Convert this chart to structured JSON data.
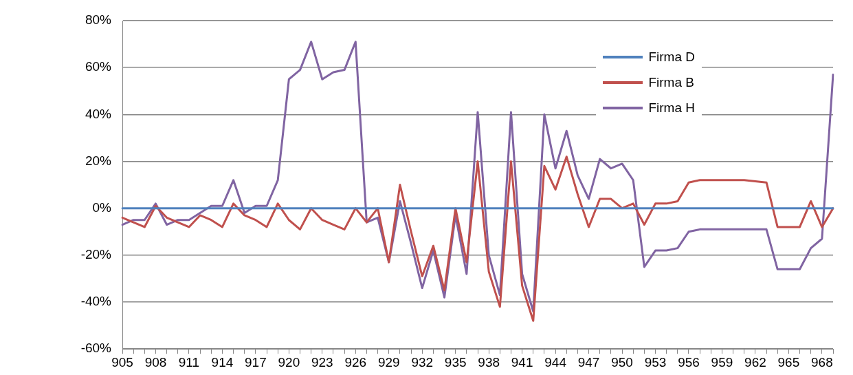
{
  "chart_data": {
    "type": "line",
    "categories": [
      "905",
      null,
      null,
      "908",
      null,
      null,
      "911",
      null,
      null,
      "914",
      null,
      null,
      "917",
      null,
      null,
      "920",
      null,
      null,
      "923",
      null,
      null,
      "926",
      null,
      null,
      "929",
      null,
      null,
      "932",
      null,
      null,
      "935",
      null,
      null,
      "938",
      null,
      null,
      "941",
      null,
      null,
      "944",
      null,
      null,
      "947",
      null,
      null,
      "950",
      null,
      null,
      "953",
      null,
      null,
      "956",
      null,
      null,
      "959",
      null,
      null,
      "962",
      null,
      null,
      "965",
      null,
      null,
      "968",
      null
    ],
    "series": [
      {
        "name": "Firma D",
        "color": "#4f81bd",
        "values": [
          0,
          0,
          0,
          0,
          0,
          0,
          0,
          0,
          0,
          0,
          0,
          0,
          0,
          0,
          0,
          0,
          0,
          0,
          0,
          0,
          0,
          0,
          0,
          0,
          0,
          0,
          0,
          0,
          0,
          0,
          0,
          0,
          0,
          0,
          0,
          0,
          0,
          0,
          0,
          0,
          0,
          0,
          0,
          0,
          0,
          0,
          0,
          0,
          0,
          0,
          0,
          0,
          0,
          0,
          0,
          0,
          0,
          0,
          0,
          0,
          0,
          0,
          0,
          0,
          0
        ]
      },
      {
        "name": "Firma B",
        "color": "#c0504d",
        "values": [
          -4,
          -6,
          -8,
          1,
          -4,
          -6,
          -8,
          -3,
          -5,
          -8,
          2,
          -3,
          -5,
          -8,
          2,
          -5,
          -9,
          0,
          -5,
          -7,
          -9,
          0,
          -6,
          0,
          -23,
          10,
          -10,
          -29,
          -16,
          -35,
          0,
          -23,
          20,
          -27,
          -42,
          20,
          -33,
          -48,
          18,
          8,
          22,
          6,
          -8,
          4,
          4,
          0,
          2,
          -7,
          2,
          2,
          3,
          11,
          12,
          12,
          12,
          12,
          12,
          11.5,
          11,
          -8,
          -8,
          -8,
          3,
          -8,
          0
        ]
      },
      {
        "name": "Firma H",
        "color": "#8064a2",
        "values": [
          -7,
          -5,
          -5,
          2,
          -7,
          -5,
          -5,
          -2,
          1,
          1,
          12,
          -2,
          1,
          1,
          12,
          55,
          59,
          71,
          55,
          58,
          59,
          71,
          -6,
          -4,
          -23,
          3,
          -15,
          -34,
          -18,
          -38,
          -3,
          -28,
          41,
          -20,
          -37,
          41,
          -28,
          -44,
          40,
          17,
          33,
          14,
          4,
          21,
          17,
          19,
          12,
          -25,
          -18,
          -18,
          -17,
          -10,
          -9,
          -9,
          -9,
          -9,
          -9,
          -9,
          -9,
          -26,
          -26,
          -26,
          -17,
          -13,
          57
        ]
      }
    ],
    "ylim": [
      -60,
      80
    ],
    "yticks": [
      {
        "value": -60,
        "label": "-60%"
      },
      {
        "value": -40,
        "label": "-40%"
      },
      {
        "value": -20,
        "label": "-20%"
      },
      {
        "value": 0,
        "label": "0%"
      },
      {
        "value": 20,
        "label": "20%"
      },
      {
        "value": 40,
        "label": "40%"
      },
      {
        "value": 60,
        "label": "60%"
      },
      {
        "value": 80,
        "label": "80%"
      }
    ],
    "grid": "y",
    "legend": "top right",
    "line_style": "solid"
  }
}
